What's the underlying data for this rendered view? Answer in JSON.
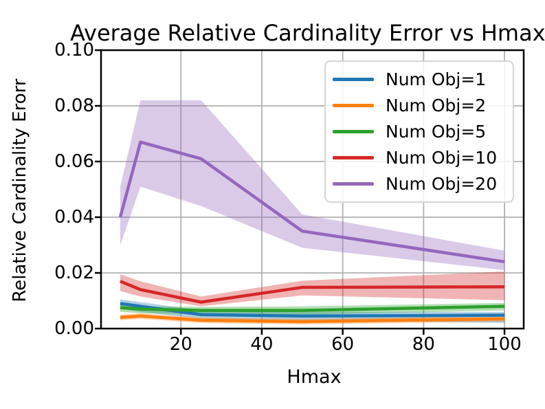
{
  "title": "Average Relative Cardinality Error vs Hmax",
  "chart_data": {
    "type": "line",
    "title": "Average Relative Cardinality Error vs Hmax",
    "xlabel": "Hmax",
    "ylabel": "Relative Cardinality Erorr",
    "x": [
      5,
      10,
      25,
      50,
      100
    ],
    "xlim": [
      0.25,
      104.75
    ],
    "ylim": [
      0.0,
      0.1
    ],
    "x_ticks": [
      {
        "value": 20,
        "label": "20"
      },
      {
        "value": 40,
        "label": "40"
      },
      {
        "value": 60,
        "label": "60"
      },
      {
        "value": 80,
        "label": "80"
      },
      {
        "value": 100,
        "label": "100"
      }
    ],
    "y_ticks": [
      {
        "value": 0.0,
        "label": "0.00"
      },
      {
        "value": 0.02,
        "label": "0.02"
      },
      {
        "value": 0.04,
        "label": "0.04"
      },
      {
        "value": 0.06,
        "label": "0.06"
      },
      {
        "value": 0.08,
        "label": "0.08"
      },
      {
        "value": 0.1,
        "label": "0.10"
      }
    ],
    "grid": true,
    "grid_color": "#b0b0b0",
    "band_alpha": 0.35,
    "legend_position": "upper right",
    "series": [
      {
        "name": "Num Obj=1",
        "color": "#1f77b4",
        "values": [
          0.009,
          0.008,
          0.005,
          0.0045,
          0.0048
        ],
        "band_lower": [
          0.007,
          0.006,
          0.0035,
          0.003,
          0.002
        ],
        "band_upper": [
          0.0105,
          0.0095,
          0.0065,
          0.006,
          0.006
        ]
      },
      {
        "name": "Num Obj=2",
        "color": "#ff7f0e",
        "values": [
          0.004,
          0.0045,
          0.003,
          0.0025,
          0.0035
        ],
        "band_lower": [
          0.003,
          0.0035,
          0.002,
          0.0015,
          0.0025
        ],
        "band_upper": [
          0.005,
          0.0055,
          0.004,
          0.0035,
          0.0045
        ]
      },
      {
        "name": "Num Obj=5",
        "color": "#2ca02c",
        "values": [
          0.0075,
          0.007,
          0.0065,
          0.0065,
          0.008
        ],
        "band_lower": [
          0.006,
          0.0055,
          0.005,
          0.005,
          0.0065
        ],
        "band_upper": [
          0.0085,
          0.008,
          0.0078,
          0.008,
          0.0092
        ]
      },
      {
        "name": "Num Obj=10",
        "color": "#d62728",
        "values": [
          0.017,
          0.014,
          0.0095,
          0.0148,
          0.015
        ],
        "band_lower": [
          0.0135,
          0.0115,
          0.008,
          0.0119,
          0.0102
        ],
        "band_upper": [
          0.0195,
          0.017,
          0.0115,
          0.0172,
          0.0205
        ]
      },
      {
        "name": "Num Obj=20",
        "color": "#9467bd",
        "values": [
          0.04,
          0.067,
          0.061,
          0.035,
          0.024
        ],
        "band_lower": [
          0.03,
          0.051,
          0.044,
          0.029,
          0.021
        ],
        "band_upper": [
          0.051,
          0.082,
          0.082,
          0.041,
          0.028
        ]
      }
    ]
  }
}
